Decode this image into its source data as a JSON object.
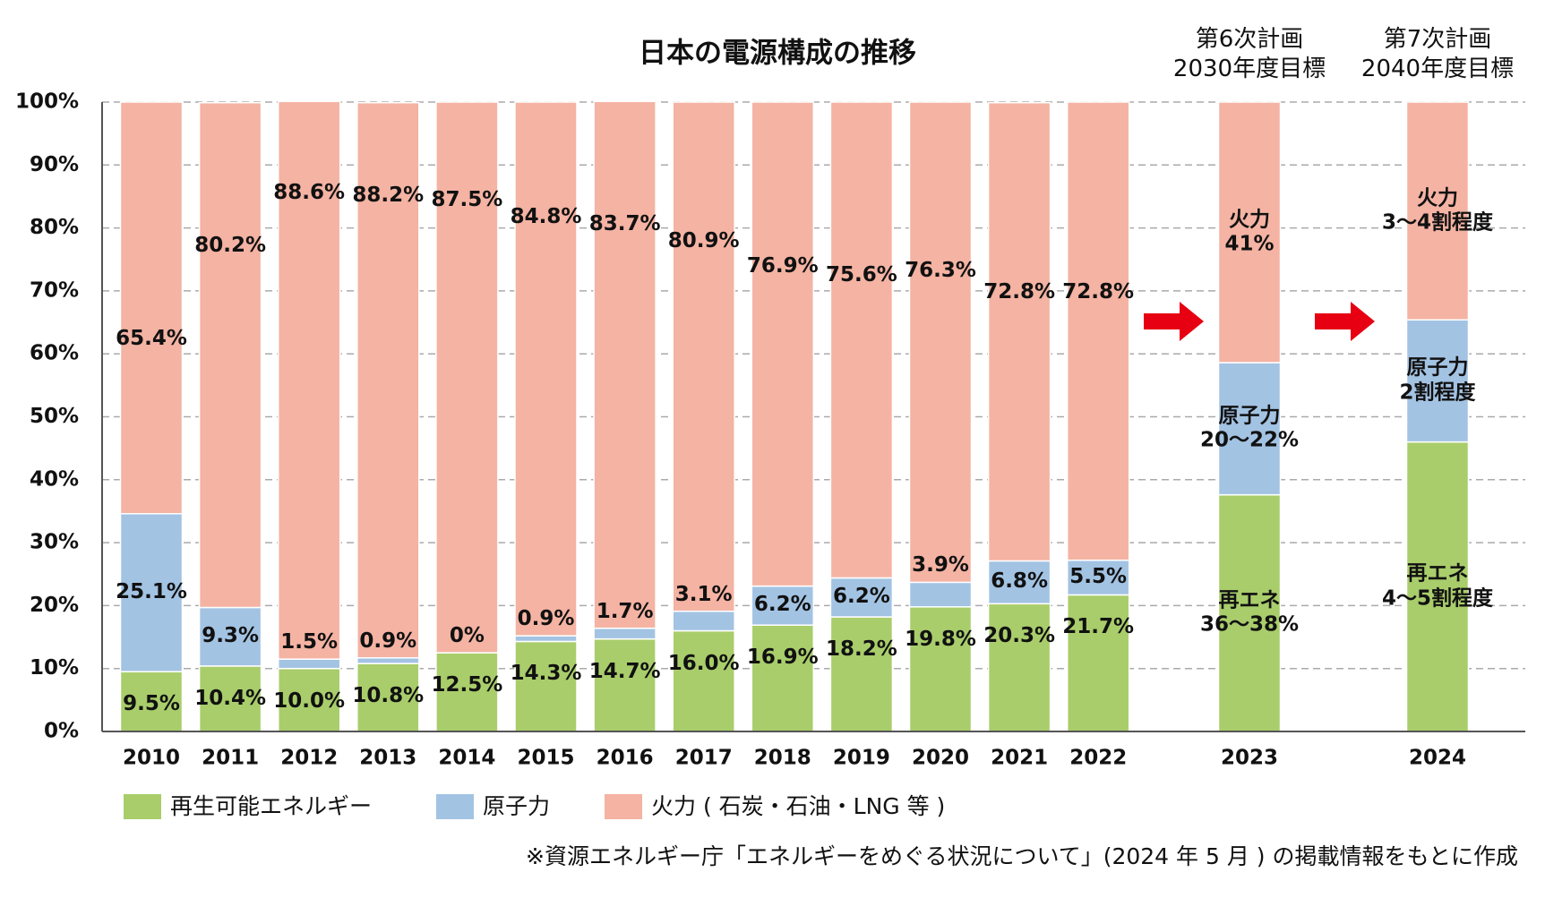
{
  "chart_data": {
    "type": "stacked_bar",
    "title": "日本の電源構成の推移",
    "annotations": [
      "第6次計画\n2030年度目標",
      "第7次計画\n2040年度目標"
    ],
    "categories": [
      "2010",
      "2011",
      "2012",
      "2013",
      "2014",
      "2015",
      "2016",
      "2017",
      "2018",
      "2019",
      "2020",
      "2021",
      "2022",
      "2023",
      "2024"
    ],
    "series": [
      {
        "name": "再生可能エネルギー",
        "color": "#a9cd6b",
        "values": [
          9.5,
          10.4,
          10.0,
          10.8,
          12.5,
          14.3,
          14.7,
          16.0,
          16.9,
          18.2,
          19.8,
          20.3,
          21.7,
          37.6,
          46
        ],
        "value_labels": [
          "9.5%",
          "10.4%",
          "10.0%",
          "10.8%",
          "12.5%",
          "14.3%",
          "14.7%",
          "16.0%",
          "16.9%",
          "18.2%",
          "19.8%",
          "20.3%",
          "21.7%",
          "再エネ\n36〜38%",
          "再エネ\n4〜5割程度"
        ]
      },
      {
        "name": "原子力",
        "color": "#a3c3e3",
        "values": [
          25.1,
          9.3,
          1.5,
          0.9,
          0,
          0.9,
          1.7,
          3.1,
          6.2,
          6.2,
          3.9,
          6.8,
          5.5,
          21,
          19.4
        ],
        "value_labels": [
          "25.1%",
          "9.3%",
          "1.5%",
          "0.9%",
          "0%",
          "0.9%",
          "1.7%",
          "3.1%",
          "6.2%",
          "6.2%",
          "3.9%",
          "6.8%",
          "5.5%",
          "原子力\n20〜22%",
          "原子力\n2割程度"
        ]
      },
      {
        "name": "火力 ( 石炭・石油・LNG 等 )",
        "color": "#f4b3a3",
        "values": [
          65.4,
          80.2,
          88.6,
          88.2,
          87.5,
          84.8,
          83.7,
          80.9,
          76.9,
          75.6,
          76.3,
          72.8,
          72.8,
          41.4,
          34.6
        ],
        "value_labels": [
          "65.4%",
          "80.2%",
          "88.6%",
          "88.2%",
          "87.5%",
          "84.8%",
          "83.7%",
          "80.9%",
          "76.9%",
          "75.6%",
          "76.3%",
          "72.8%",
          "72.8%",
          "火力\n41%",
          "火力\n3〜4割程度"
        ]
      }
    ],
    "ylim": [
      0,
      100
    ],
    "yticks": [
      {
        "value": 0,
        "label": "0%"
      },
      {
        "value": 10,
        "label": "10%"
      },
      {
        "value": 20,
        "label": "20%"
      },
      {
        "value": 30,
        "label": "30%"
      },
      {
        "value": 40,
        "label": "40%"
      },
      {
        "value": 50,
        "label": "50%"
      },
      {
        "value": 60,
        "label": "60%"
      },
      {
        "value": 70,
        "label": "70%"
      },
      {
        "value": 80,
        "label": "80%"
      },
      {
        "value": 90,
        "label": "90%"
      },
      {
        "value": 100,
        "label": "100%"
      }
    ],
    "grid": true,
    "source": "※資源エネルギー庁「エネルギーをめぐる状況について」(2024 年 5 月 ) の掲載情報をもとに作成"
  }
}
